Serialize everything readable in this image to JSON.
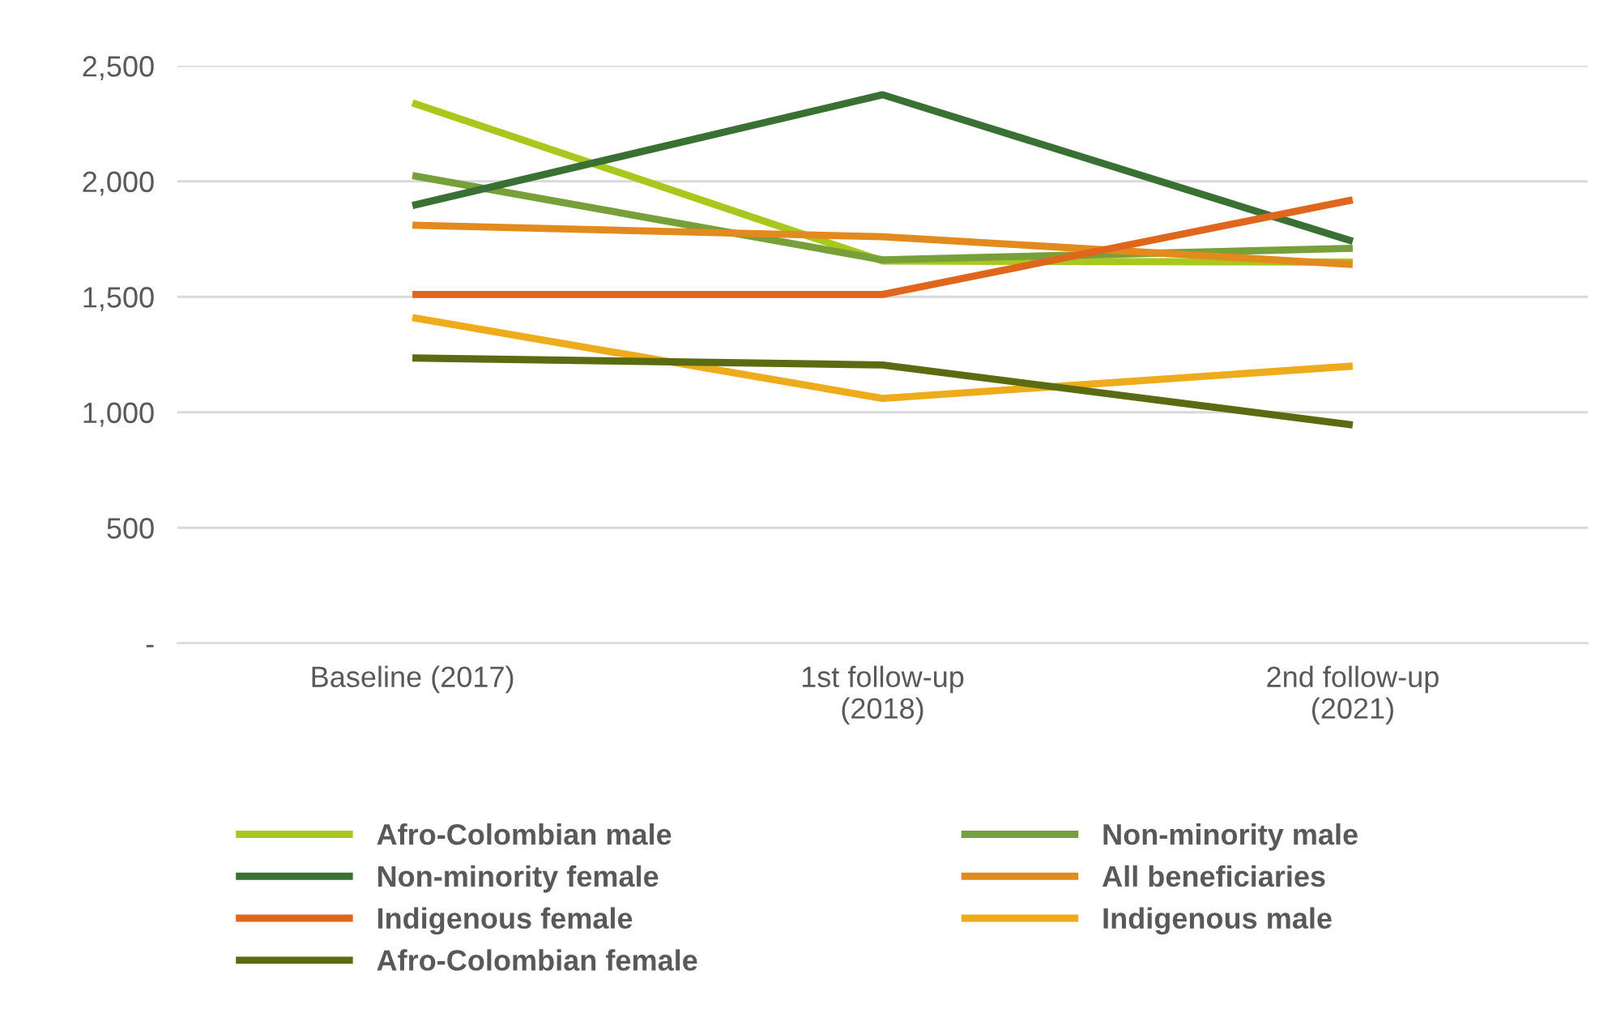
{
  "chart_data": {
    "type": "line",
    "categories": [
      "Baseline (2017)",
      "1st follow-up\n(2018)",
      "2nd follow-up\n(2021)"
    ],
    "ylim": [
      0,
      2500
    ],
    "yticks": [
      {
        "value": 0,
        "label": "-"
      },
      {
        "value": 500,
        "label": "500"
      },
      {
        "value": 1000,
        "label": "1,000"
      },
      {
        "value": 1500,
        "label": "1,500"
      },
      {
        "value": 2000,
        "label": "2,000"
      },
      {
        "value": 2500,
        "label": "2,500"
      }
    ],
    "grid": "y",
    "legend": "bottom",
    "marker": "none",
    "line_style": "solid",
    "series": [
      {
        "name": "Afro-Colombian male",
        "color": "#a9c81e",
        "values": [
          2340,
          1655,
          1650
        ]
      },
      {
        "name": "Non-minority male",
        "color": "#77a03a",
        "values": [
          2025,
          1660,
          1710
        ]
      },
      {
        "name": "Non-minority female",
        "color": "#3a7033",
        "values": [
          1895,
          2375,
          1740
        ]
      },
      {
        "name": "All beneficiaries",
        "color": "#e28a1d",
        "values": [
          1810,
          1760,
          1640
        ]
      },
      {
        "name": "Indigenous female",
        "color": "#e0661e",
        "values": [
          1510,
          1510,
          1920
        ]
      },
      {
        "name": "Indigenous male",
        "color": "#eeac1c",
        "values": [
          1410,
          1060,
          1200
        ]
      },
      {
        "name": "Afro-Colombian female",
        "color": "#5a6b12",
        "values": [
          1235,
          1205,
          945
        ]
      }
    ]
  }
}
